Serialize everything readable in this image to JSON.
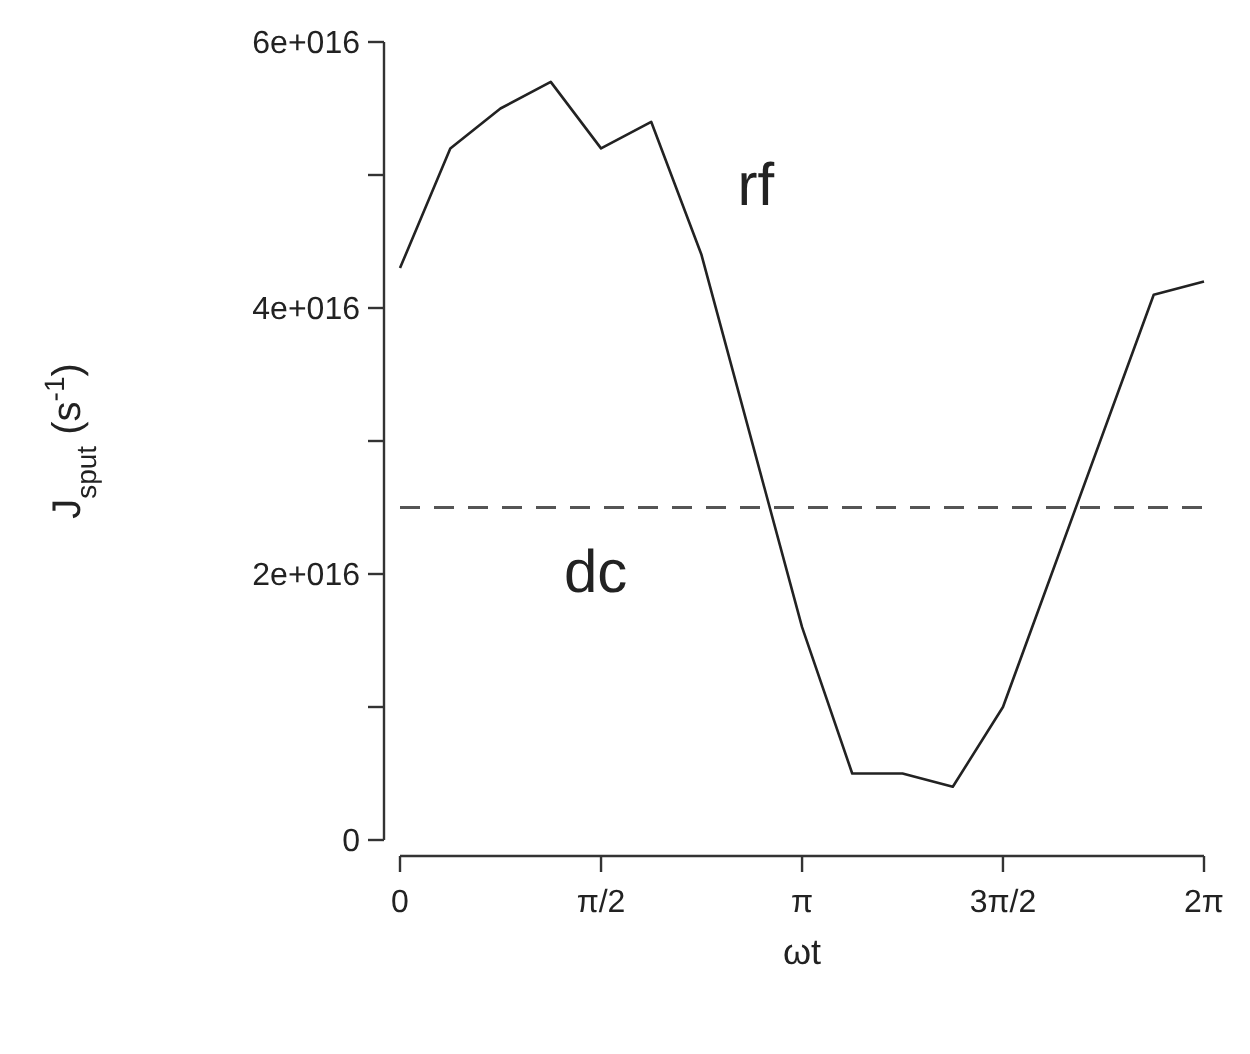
{
  "chart_data": {
    "type": "line",
    "xlabel": "ωt",
    "ylabel": "J$_{sput}$ (s$^{-1}$)",
    "xlim": [
      0,
      6.283
    ],
    "xticks": [
      0,
      {
        "value": 1.571,
        "label": "π/2"
      },
      {
        "value": 3.142,
        "label": "π"
      },
      {
        "value": 4.712,
        "label": "3π/2"
      },
      {
        "value": 6.283,
        "label": "2π"
      }
    ],
    "ylim": [
      0,
      6e+16
    ],
    "yticks": [
      0,
      {
        "value": 1e+16,
        "label": null
      },
      {
        "value": 2e+16,
        "label": "2e+016"
      },
      {
        "value": 3e+16,
        "label": null
      },
      {
        "value": 4e+16,
        "label": "4e+016"
      },
      {
        "value": 5e+16,
        "label": null
      },
      {
        "value": 6e+16,
        "label": "6e+016"
      }
    ],
    "series": [
      {
        "name": "rf",
        "color": "#222222",
        "x": [
          0,
          0.393,
          0.785,
          1.178,
          1.571,
          1.963,
          2.356,
          3.142,
          3.534,
          3.927,
          4.32,
          4.712,
          5.89,
          6.283
        ],
        "values": [
          4.3e+16,
          5.2e+16,
          5.5e+16,
          5.7e+16,
          5.2e+16,
          5.4e+16,
          4.4e+16,
          1.6e+16,
          5000000000000000.0,
          5000000000000000.0,
          4000000000000000.0,
          1e+16,
          4.1e+16,
          4.2e+16
        ]
      }
    ],
    "ref_lines": [
      {
        "axis": "y",
        "value": 2.5e+16,
        "label": "dc",
        "color": "#555555",
        "line_style": "dashed"
      }
    ],
    "marker": "none",
    "line_style": "solid",
    "grid": false,
    "legend": false
  }
}
